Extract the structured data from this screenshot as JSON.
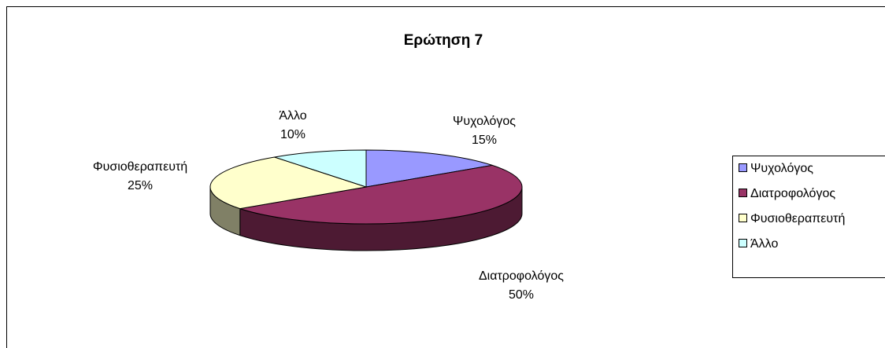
{
  "chart_data": {
    "type": "pie",
    "title": "Ερώτηση 7",
    "categories": [
      "Ψυχολόγος",
      "Διατροφολόγος",
      "Φυσιοθεραπευτή",
      "Άλλο"
    ],
    "values": [
      15,
      50,
      25,
      10
    ],
    "value_labels": [
      "15%",
      "50%",
      "25%",
      "10%"
    ],
    "colors": [
      "#9999ff",
      "#993366",
      "#ffffcc",
      "#ccffff"
    ],
    "legend": "right"
  }
}
